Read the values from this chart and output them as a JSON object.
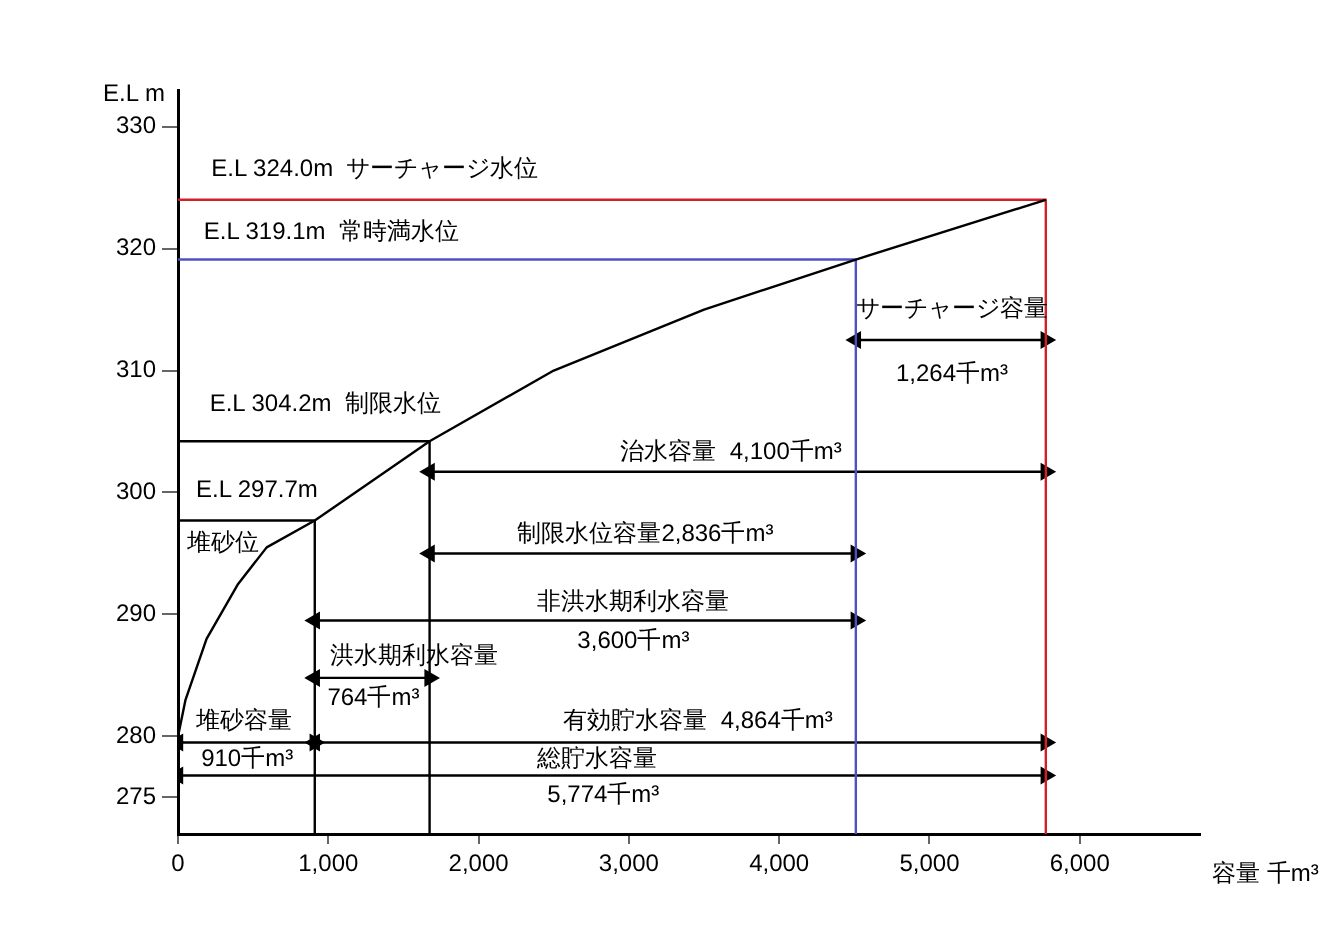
{
  "chart_data": {
    "type": "line",
    "xlabel": "容量 千m³",
    "ylabel": "E.L m",
    "xlim": [
      0,
      6800
    ],
    "ylim": [
      272,
      333
    ],
    "xticks": [
      0,
      {
        "value": 1000,
        "label": "1,000"
      },
      {
        "value": 2000,
        "label": "2,000"
      },
      {
        "value": 3000,
        "label": "3,000"
      },
      {
        "value": 4000,
        "label": "4,000"
      },
      {
        "value": 5000,
        "label": "5,000"
      },
      {
        "value": 6000,
        "label": "6,000"
      }
    ],
    "yticks": [
      275,
      280,
      290,
      300,
      310,
      320,
      330
    ],
    "grid": false,
    "legend": false,
    "marker": "none",
    "line_style": "solid",
    "series": [
      {
        "color": "#000000",
        "x": [
          0,
          0,
          50,
          190,
          400,
          590,
          910,
          1674,
          2500,
          3500,
          4510,
          5774
        ],
        "values": [
          275,
          280,
          283,
          288,
          292.5,
          295.5,
          297.7,
          304.2,
          310,
          315,
          319.1,
          324
        ]
      },
      {
        "color": "#d0202a",
        "x": [
          0,
          5774,
          5774
        ],
        "values": [
          324,
          324,
          272
        ]
      },
      {
        "color": "#5050c0",
        "x": [
          0,
          4510,
          4510
        ],
        "values": [
          319.1,
          319.1,
          272
        ]
      },
      {
        "color": "#000000",
        "x": [
          0,
          1674,
          1674
        ],
        "values": [
          304.2,
          304.2,
          272
        ]
      },
      {
        "color": "#000000",
        "x": [
          0,
          910,
          910
        ],
        "values": [
          297.7,
          297.7,
          272
        ]
      },
      {
        "color": "#000000",
        "marker": "triangle",
        "x": [
          4510,
          5774
        ],
        "values": [
          312.5,
          312.5
        ]
      },
      {
        "color": "#000000",
        "marker": "triangle",
        "x": [
          1674,
          5774
        ],
        "values": [
          301.7,
          301.7
        ]
      },
      {
        "color": "#000000",
        "marker": "triangle",
        "x": [
          1674,
          4510
        ],
        "values": [
          295,
          295
        ]
      },
      {
        "color": "#000000",
        "marker": "triangle",
        "x": [
          910,
          4510
        ],
        "values": [
          289.5,
          289.5
        ]
      },
      {
        "color": "#000000",
        "marker": "triangle",
        "x": [
          910,
          1674
        ],
        "values": [
          284.8,
          284.8
        ]
      },
      {
        "color": "#000000",
        "marker": "triangle",
        "x": [
          0,
          910
        ],
        "values": [
          279.5,
          279.5
        ]
      },
      {
        "color": "#000000",
        "marker": "triangle",
        "x": [
          910,
          5774
        ],
        "values": [
          279.5,
          279.5
        ]
      },
      {
        "color": "#000000",
        "marker": "triangle",
        "x": [
          0,
          5774
        ],
        "values": [
          276.8,
          276.8
        ]
      }
    ],
    "annotations": [
      "E.L 324.0m  サーチャージ水位",
      "E.L 319.1m  常時満水位",
      "E.L 304.2m  制限水位",
      "E.L 297.7m",
      "堆砂位",
      "サーチャージ容量",
      "1,264千m³",
      "治水容量  4,100千m³",
      "制限水位容量2,836千m³",
      "非洪水期利水容量",
      "3,600千m³",
      "洪水期利水容量",
      "764千m³",
      "有効貯水容量  4,864千m³",
      "堆砂容量",
      "910千m³",
      "総貯水容量",
      "5,774千m³"
    ]
  }
}
